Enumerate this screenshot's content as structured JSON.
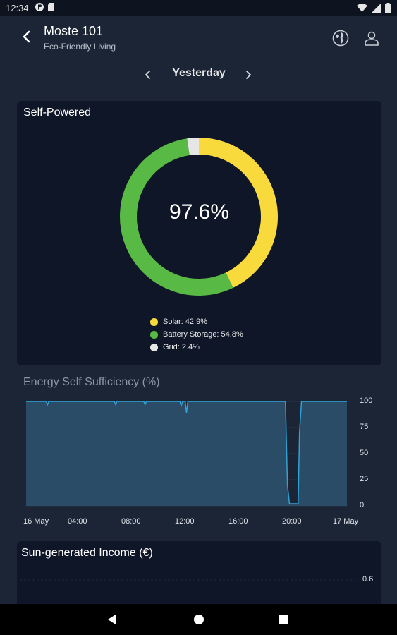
{
  "status_bar": {
    "time": "12:34"
  },
  "header": {
    "title": "Moste 101",
    "subtitle": "Eco-Friendly Living"
  },
  "date_nav": {
    "label": "Yesterday"
  },
  "self_powered": {
    "title": "Self-Powered",
    "percent_label": "97.6%",
    "segments": [
      {
        "label": "Solar: 42.9%",
        "value": 42.9,
        "color": "#f9da3c"
      },
      {
        "label": "Battery Storage: 54.8%",
        "value": 54.8,
        "color": "#58b944"
      },
      {
        "label": "Grid: 2.4%",
        "value": 2.4,
        "color": "#e6e6e6"
      }
    ]
  },
  "chart_data": [
    {
      "type": "area",
      "title": "Energy Self Sufficiency (%)",
      "x_tick_labels": [
        "16 May",
        "04:00",
        "08:00",
        "12:00",
        "16:00",
        "20:00",
        "17 May"
      ],
      "y_tick_labels": [
        "100",
        "75",
        "50",
        "25",
        "0"
      ],
      "ylim": [
        0,
        100
      ],
      "x_hours": [
        0,
        1.5,
        1.6,
        1.7,
        6.6,
        6.7,
        6.8,
        8.8,
        8.9,
        9.0,
        9.1,
        11.5,
        11.6,
        11.7,
        11.9,
        12.0,
        12.1,
        19.4,
        19.55,
        19.7,
        20.0,
        20.35,
        20.45,
        20.6,
        24
      ],
      "values": [
        100,
        100,
        97,
        100,
        100,
        97,
        100,
        100,
        97,
        100,
        100,
        100,
        96,
        100,
        100,
        89,
        100,
        100,
        20,
        2,
        2,
        2,
        70,
        100,
        100
      ],
      "color": "#2fa3d6"
    },
    {
      "type": "bar",
      "title": "Sun-generated Income (€)",
      "y_tick_labels": [
        "0.6"
      ]
    }
  ]
}
